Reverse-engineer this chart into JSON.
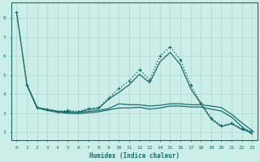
{
  "xlabel": "Humidex (Indice chaleur)",
  "bg_color": "#cceee8",
  "grid_color": "#b0d5d0",
  "line_color": "#1a6b6b",
  "xlim": [
    -0.5,
    23.5
  ],
  "ylim": [
    1.6,
    8.8
  ],
  "x_ticks": [
    0,
    1,
    2,
    3,
    4,
    5,
    6,
    7,
    8,
    9,
    10,
    11,
    12,
    13,
    14,
    15,
    16,
    17,
    18,
    19,
    20,
    21,
    22,
    23
  ],
  "y_ticks": [
    2,
    3,
    4,
    5,
    6,
    7,
    8
  ],
  "series": [
    {
      "x": [
        0,
        1,
        2,
        3,
        4,
        5,
        6,
        7,
        8,
        9,
        10,
        11,
        12,
        13,
        14,
        15,
        16,
        17,
        18,
        19,
        20,
        21,
        22,
        23
      ],
      "y": [
        8.3,
        4.5,
        3.3,
        3.2,
        3.1,
        3.15,
        3.1,
        3.25,
        3.3,
        3.8,
        4.3,
        4.7,
        5.3,
        4.75,
        6.0,
        6.5,
        5.8,
        4.5,
        3.55,
        2.75,
        2.35,
        2.5,
        2.2,
        2.05
      ],
      "marker": "+",
      "linestyle": "dotted",
      "linewidth": 1.0,
      "markersize": 3.5
    },
    {
      "x": [
        0,
        1,
        2,
        3,
        4,
        5,
        6,
        7,
        8,
        9,
        10,
        11,
        12,
        13,
        14,
        15,
        16,
        17,
        18,
        19,
        20,
        21,
        22,
        23
      ],
      "y": [
        8.3,
        4.5,
        3.3,
        3.2,
        3.1,
        3.1,
        3.05,
        3.2,
        3.25,
        3.75,
        4.1,
        4.5,
        5.05,
        4.6,
        5.7,
        6.2,
        5.55,
        4.3,
        3.5,
        2.7,
        2.3,
        2.45,
        2.15,
        2.0
      ],
      "marker": null,
      "linestyle": "solid",
      "linewidth": 0.9,
      "markersize": 0
    },
    {
      "x": [
        1,
        2,
        3,
        4,
        5,
        6,
        7,
        8,
        9,
        10,
        11,
        12,
        13,
        14,
        15,
        16,
        17,
        18,
        19,
        20,
        21,
        22,
        23
      ],
      "y": [
        4.5,
        3.3,
        3.2,
        3.1,
        3.05,
        3.05,
        3.1,
        3.15,
        3.25,
        3.5,
        3.45,
        3.45,
        3.38,
        3.42,
        3.5,
        3.5,
        3.45,
        3.45,
        3.38,
        3.3,
        2.95,
        2.5,
        2.1
      ],
      "marker": null,
      "linestyle": "solid",
      "linewidth": 0.9,
      "markersize": 0
    },
    {
      "x": [
        1,
        2,
        3,
        4,
        5,
        6,
        7,
        8,
        9,
        10,
        11,
        12,
        13,
        14,
        15,
        16,
        17,
        18,
        19,
        20,
        21,
        22,
        23
      ],
      "y": [
        4.5,
        3.28,
        3.15,
        3.05,
        3.0,
        2.98,
        3.03,
        3.08,
        3.18,
        3.28,
        3.28,
        3.32,
        3.22,
        3.28,
        3.38,
        3.38,
        3.33,
        3.33,
        3.22,
        3.12,
        2.8,
        2.3,
        1.9
      ],
      "marker": null,
      "linestyle": "solid",
      "linewidth": 0.9,
      "markersize": 0
    }
  ]
}
